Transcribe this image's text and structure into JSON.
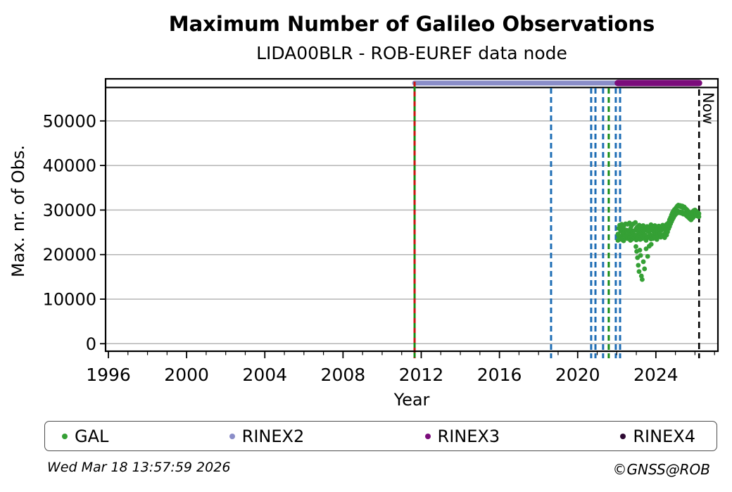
{
  "header": {
    "title": "Maximum Number of Galileo Observations",
    "subtitle": "LIDA00BLR - ROB-EUREF data node"
  },
  "footer": {
    "timestamp": "Wed Mar 18 13:57:59 2026",
    "copyright": "©GNSS@ROB"
  },
  "legend": {
    "items": [
      {
        "label": "GAL",
        "color": "#35a035"
      },
      {
        "label": "RINEX2",
        "color": "#8a8dc8"
      },
      {
        "label": "RINEX3",
        "color": "#7b0c7b"
      },
      {
        "label": "RINEX4",
        "color": "#2d0a33"
      }
    ]
  },
  "chart_data": {
    "type": "scatter",
    "title": "Maximum Number of Galileo Observations",
    "subtitle": "LIDA00BLR - ROB-EUREF data node",
    "xlabel": "Year",
    "ylabel": "Max. nr. of Obs.",
    "xlim": [
      1995.85,
      2027.2
    ],
    "ylim": [
      -1800,
      59500
    ],
    "grid": "horizontal-gray",
    "legend_position": "bottom",
    "yticks": [
      0,
      10000,
      20000,
      30000,
      40000,
      50000
    ],
    "xticks_major": [
      1996,
      2000,
      2004,
      2008,
      2012,
      2016,
      2020,
      2024
    ],
    "xticks_minor_start": 1996,
    "xticks_minor_end": 2027,
    "hline": {
      "value": 57500,
      "color": "#000000"
    },
    "bars": [
      {
        "name": "RINEX2",
        "start": 2011.66,
        "end": 2022.13,
        "color": "#8a8dc8",
        "width": 7
      },
      {
        "name": "RINEX3",
        "start": 2022.05,
        "end": 2026.21,
        "color": "#7b0c7b",
        "width": 9
      }
    ],
    "vlines": [
      {
        "year": 2011.66,
        "style": "solid",
        "color": "#168c16",
        "overlay_style": "dashed",
        "overlay_color": "#cc1414",
        "name": "gal-start"
      },
      {
        "year": 2018.64,
        "style": "dashed",
        "color": "#1f6eb5",
        "name": "event-1"
      },
      {
        "year": 2020.69,
        "style": "dashed",
        "color": "#1f6eb5",
        "name": "event-2"
      },
      {
        "year": 2020.91,
        "style": "dashed",
        "color": "#1f6eb5",
        "name": "event-3"
      },
      {
        "year": 2021.3,
        "style": "dashed",
        "color": "#1f6eb5",
        "name": "event-4"
      },
      {
        "year": 2021.59,
        "style": "dashed",
        "color": "#168c16",
        "name": "event-5"
      },
      {
        "year": 2021.95,
        "style": "dashed",
        "color": "#1f6eb5",
        "name": "event-6"
      },
      {
        "year": 2022.17,
        "style": "dashed",
        "color": "#1f6eb5",
        "name": "event-7"
      }
    ],
    "now_marker": {
      "year": 2026.21,
      "label": "Now",
      "color": "#000000",
      "style": "dashed"
    },
    "series": [
      {
        "name": "GAL",
        "color": "#35a035",
        "marker": "circle",
        "points": [
          [
            2022.06,
            24600
          ],
          [
            2022.06,
            23200
          ],
          [
            2022.1,
            25900
          ],
          [
            2022.1,
            24100
          ],
          [
            2022.15,
            26600
          ],
          [
            2022.15,
            23500
          ],
          [
            2022.2,
            25300
          ],
          [
            2022.2,
            24000
          ],
          [
            2022.25,
            26800
          ],
          [
            2022.25,
            23400
          ],
          [
            2022.3,
            25800
          ],
          [
            2022.3,
            24600
          ],
          [
            2022.35,
            26300
          ],
          [
            2022.35,
            23100
          ],
          [
            2022.4,
            25100
          ],
          [
            2022.4,
            24200
          ],
          [
            2022.45,
            26900
          ],
          [
            2022.45,
            23700
          ],
          [
            2022.5,
            25500
          ],
          [
            2022.5,
            24300
          ],
          [
            2022.55,
            26800
          ],
          [
            2022.55,
            23600
          ],
          [
            2022.6,
            25200
          ],
          [
            2022.6,
            24500
          ],
          [
            2022.65,
            27100
          ],
          [
            2022.65,
            23900
          ],
          [
            2022.7,
            25800
          ],
          [
            2022.7,
            23200
          ],
          [
            2022.75,
            26400
          ],
          [
            2022.75,
            24700
          ],
          [
            2022.8,
            25000
          ],
          [
            2022.8,
            23500
          ],
          [
            2022.85,
            26900
          ],
          [
            2022.85,
            24100
          ],
          [
            2022.9,
            25400
          ],
          [
            2022.9,
            23800
          ],
          [
            2022.95,
            27200
          ],
          [
            2022.95,
            24400
          ],
          [
            2023.0,
            25900
          ],
          [
            2023.0,
            23300
          ],
          [
            2023.05,
            26200
          ],
          [
            2023.05,
            23700
          ],
          [
            2023.1,
            25100
          ],
          [
            2023.1,
            23900
          ],
          [
            2023.15,
            26600
          ],
          [
            2023.15,
            24300
          ],
          [
            2023.2,
            25600
          ],
          [
            2023.2,
            23400
          ],
          [
            2023.25,
            26100
          ],
          [
            2023.25,
            24600
          ],
          [
            2023.3,
            25000
          ],
          [
            2023.3,
            23600
          ],
          [
            2023.35,
            26500
          ],
          [
            2023.35,
            24000
          ],
          [
            2023.4,
            25300
          ],
          [
            2023.4,
            23700
          ],
          [
            2023.45,
            26000
          ],
          [
            2023.45,
            24400
          ],
          [
            2023.5,
            25700
          ],
          [
            2023.5,
            23200
          ],
          [
            2023.55,
            26300
          ],
          [
            2023.55,
            24100
          ],
          [
            2023.6,
            25200
          ],
          [
            2023.6,
            23800
          ],
          [
            2022.98,
            21800
          ],
          [
            2023.02,
            20700
          ],
          [
            2023.06,
            19300
          ],
          [
            2023.1,
            17600
          ],
          [
            2023.14,
            16200
          ],
          [
            2023.18,
            21000
          ],
          [
            2023.22,
            19800
          ],
          [
            2023.26,
            15200
          ],
          [
            2023.3,
            14400
          ],
          [
            2023.36,
            18400
          ],
          [
            2023.42,
            16800
          ],
          [
            2023.5,
            21300
          ],
          [
            2023.58,
            19600
          ],
          [
            2023.66,
            21900
          ],
          [
            2023.76,
            22300
          ],
          [
            2023.65,
            26100
          ],
          [
            2023.65,
            23900
          ],
          [
            2023.7,
            25400
          ],
          [
            2023.7,
            24500
          ],
          [
            2023.75,
            26700
          ],
          [
            2023.75,
            23500
          ],
          [
            2023.8,
            25800
          ],
          [
            2023.8,
            24200
          ],
          [
            2023.85,
            26200
          ],
          [
            2023.85,
            23600
          ],
          [
            2023.9,
            25100
          ],
          [
            2023.9,
            24400
          ],
          [
            2023.95,
            26500
          ],
          [
            2023.95,
            23800
          ],
          [
            2024.0,
            25600
          ],
          [
            2024.0,
            24700
          ],
          [
            2024.05,
            26000
          ],
          [
            2024.05,
            23400
          ],
          [
            2024.1,
            25300
          ],
          [
            2024.1,
            24600
          ],
          [
            2024.15,
            26400
          ],
          [
            2024.15,
            24000
          ],
          [
            2024.2,
            25700
          ],
          [
            2024.2,
            24800
          ],
          [
            2024.25,
            26100
          ],
          [
            2024.25,
            23900
          ],
          [
            2024.3,
            25500
          ],
          [
            2024.3,
            24300
          ],
          [
            2024.35,
            26600
          ],
          [
            2024.35,
            24100
          ],
          [
            2024.4,
            25900
          ],
          [
            2024.4,
            24500
          ],
          [
            2024.45,
            26300
          ],
          [
            2024.45,
            23800
          ],
          [
            2024.5,
            25600
          ],
          [
            2024.5,
            24900
          ],
          [
            2024.55,
            26800
          ],
          [
            2024.55,
            24400
          ],
          [
            2024.6,
            26200
          ],
          [
            2024.6,
            25100
          ],
          [
            2024.65,
            27200
          ],
          [
            2024.65,
            25800
          ],
          [
            2024.7,
            27800
          ],
          [
            2024.7,
            26300
          ],
          [
            2024.75,
            28300
          ],
          [
            2024.75,
            26900
          ],
          [
            2024.8,
            28900
          ],
          [
            2024.8,
            27400
          ],
          [
            2024.85,
            29400
          ],
          [
            2024.85,
            27900
          ],
          [
            2024.9,
            29800
          ],
          [
            2024.9,
            28300
          ],
          [
            2024.95,
            30100
          ],
          [
            2024.95,
            28700
          ],
          [
            2025.0,
            30300
          ],
          [
            2025.0,
            29000
          ],
          [
            2025.05,
            30600
          ],
          [
            2025.05,
            29200
          ],
          [
            2025.1,
            30900
          ],
          [
            2025.1,
            29500
          ],
          [
            2025.15,
            31100
          ],
          [
            2025.15,
            29700
          ],
          [
            2025.2,
            30800
          ],
          [
            2025.2,
            29400
          ],
          [
            2025.25,
            31000
          ],
          [
            2025.25,
            29600
          ],
          [
            2025.3,
            30700
          ],
          [
            2025.3,
            29300
          ],
          [
            2025.35,
            30900
          ],
          [
            2025.35,
            29500
          ],
          [
            2025.4,
            30500
          ],
          [
            2025.4,
            29100
          ],
          [
            2025.45,
            30700
          ],
          [
            2025.45,
            29300
          ],
          [
            2025.5,
            30400
          ],
          [
            2025.5,
            29000
          ],
          [
            2025.55,
            30200
          ],
          [
            2025.55,
            28800
          ],
          [
            2025.6,
            30000
          ],
          [
            2025.6,
            28600
          ],
          [
            2025.65,
            29700
          ],
          [
            2025.65,
            28400
          ],
          [
            2025.7,
            29500
          ],
          [
            2025.7,
            28200
          ],
          [
            2025.75,
            29300
          ],
          [
            2025.75,
            28000
          ],
          [
            2025.8,
            29100
          ],
          [
            2025.8,
            27800
          ],
          [
            2025.85,
            29400
          ],
          [
            2025.85,
            28100
          ],
          [
            2025.9,
            29700
          ],
          [
            2025.9,
            28300
          ],
          [
            2025.95,
            29900
          ],
          [
            2025.95,
            28600
          ],
          [
            2026.0,
            30000
          ],
          [
            2026.0,
            28800
          ],
          [
            2026.05,
            29800
          ],
          [
            2026.05,
            28900
          ],
          [
            2026.1,
            29600
          ],
          [
            2026.1,
            28700
          ],
          [
            2026.15,
            29400
          ],
          [
            2026.15,
            28600
          ],
          [
            2026.2,
            29200
          ],
          [
            2026.2,
            28500
          ]
        ]
      }
    ]
  }
}
